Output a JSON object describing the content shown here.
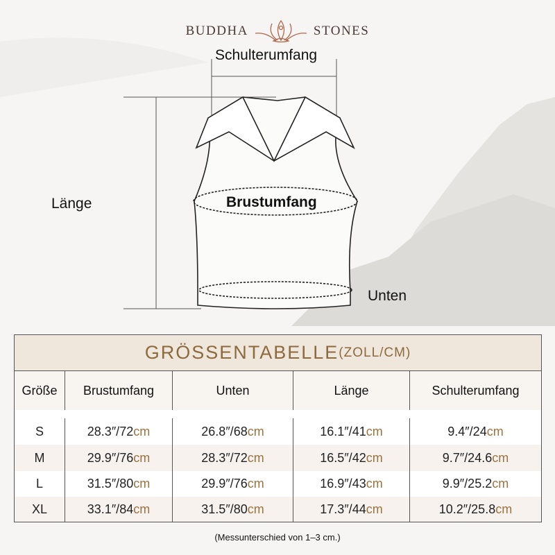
{
  "brand": {
    "left": "BUDDHA",
    "right": "STONES",
    "logo_icon": "lotus-meditation-icon"
  },
  "diagram": {
    "shoulder": "Schulterumfang",
    "chest": "Brustumfang",
    "length": "Länge",
    "bottom": "Unten"
  },
  "table": {
    "title": "GRÖSSENTABELLE",
    "title_unit": "(ZOLL/CM)",
    "headers": [
      "Größe",
      "Brustumfang",
      "Unten",
      "Länge",
      "Schulterumfang"
    ],
    "rows": [
      {
        "size": "S",
        "values": [
          [
            "28.3″/72",
            "cm"
          ],
          [
            "26.8″/68",
            "cm"
          ],
          [
            "16.1″/41",
            "cm"
          ],
          [
            "9.4″/24",
            "cm"
          ]
        ]
      },
      {
        "size": "M",
        "values": [
          [
            "29.9″/76",
            "cm"
          ],
          [
            "28.3″/72",
            "cm"
          ],
          [
            "16.5″/42",
            "cm"
          ],
          [
            "9.7″/24.6",
            "cm"
          ]
        ]
      },
      {
        "size": "L",
        "values": [
          [
            "31.5″/80",
            "cm"
          ],
          [
            "29.9″/76",
            "cm"
          ],
          [
            "16.9″/43",
            "cm"
          ],
          [
            "9.9″/25.2",
            "cm"
          ]
        ]
      },
      {
        "size": "XL",
        "values": [
          [
            "33.1″/84",
            "cm"
          ],
          [
            "31.5″/80",
            "cm"
          ],
          [
            "17.3″/44",
            "cm"
          ],
          [
            "10.2″/25.8",
            "cm"
          ]
        ]
      }
    ],
    "accent": "#9a7340"
  },
  "note": "(Messunterschied von 1–3 cm.)"
}
